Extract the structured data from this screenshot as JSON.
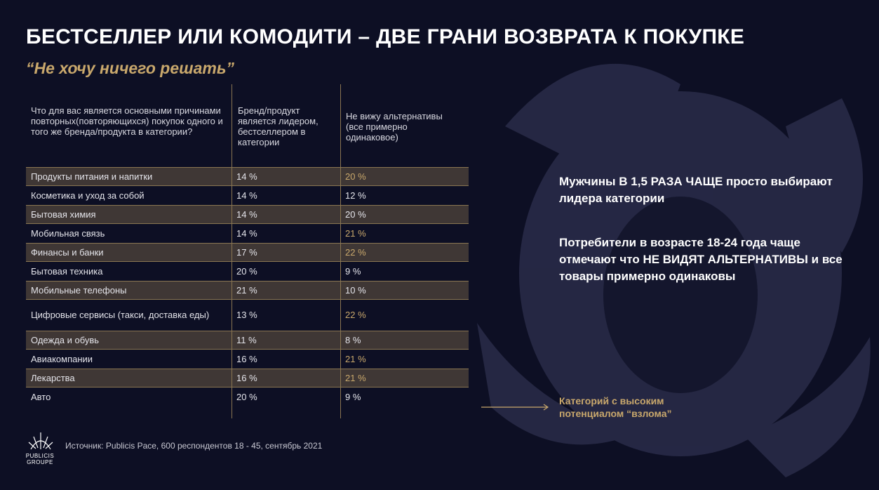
{
  "header": {
    "title": "БЕСТСЕЛЛЕР ИЛИ КОМОДИТИ – ДВЕ ГРАНИ ВОЗВРАТА К ПОКУПКЕ",
    "subtitle": "“Не хочу ничего решать”"
  },
  "table": {
    "header": [
      "Что для вас является основными причинами повторных(повторяющихся) покупок одного и того же бренда/продукта в категории?",
      "Бренд/продукт является лидером, бестселлером в категории",
      "Не вижу альтернативы (все примерно одинаковое)"
    ],
    "accent_color": "#c9a86c",
    "rows": [
      {
        "cells": [
          "Продукты питания и напитки",
          "14 %",
          "20 %"
        ],
        "shaded": true,
        "accent": true
      },
      {
        "cells": [
          "Косметика и уход за собой",
          "14 %",
          "12 %"
        ],
        "shaded": false,
        "accent": false
      },
      {
        "cells": [
          "Бытовая химия",
          "14 %",
          "20 %"
        ],
        "shaded": true,
        "accent": false
      },
      {
        "cells": [
          "Мобильная связь",
          "14 %",
          "21 %"
        ],
        "shaded": false,
        "accent": true
      },
      {
        "cells": [
          "Финансы и банки",
          "17 %",
          "22 %"
        ],
        "shaded": true,
        "accent": true
      },
      {
        "cells": [
          "Бытовая техника",
          "20 %",
          "9 %"
        ],
        "shaded": false,
        "accent": false
      },
      {
        "cells": [
          "Мобильные телефоны",
          "21 %",
          "10 %"
        ],
        "shaded": true,
        "accent": false
      },
      {
        "cells": [
          "Цифровые сервисы (такси, доставка еды)",
          "13 %",
          "22 %"
        ],
        "shaded": false,
        "accent": true
      },
      {
        "cells": [
          "Одежда и обувь",
          "11 %",
          "8 %"
        ],
        "shaded": true,
        "accent": false
      },
      {
        "cells": [
          "Авиакомпании",
          "16 %",
          "21 %"
        ],
        "shaded": false,
        "accent": true
      },
      {
        "cells": [
          "Лекарства",
          "16 %",
          "21 %"
        ],
        "shaded": true,
        "accent": true
      },
      {
        "cells": [
          "Авто",
          "20 %",
          "9 %"
        ],
        "shaded": false,
        "accent": false
      }
    ]
  },
  "notes": [
    "Мужчины В 1,5 РАЗА ЧАЩЕ просто выбирают лидера категории",
    "Потребители в возрасте 18-24 года чаще отмечают что НЕ ВИДЯТ АЛЬТЕРНАТИВЫ и все товары примерно одинаковы"
  ],
  "legend": "Категорий с высоким потенциалом “взлома”",
  "source": "Источник: Publicis Pace, 600 респондентов 18 - 45, сентябрь 2021",
  "logo": "PUBLICIS GROUPE"
}
